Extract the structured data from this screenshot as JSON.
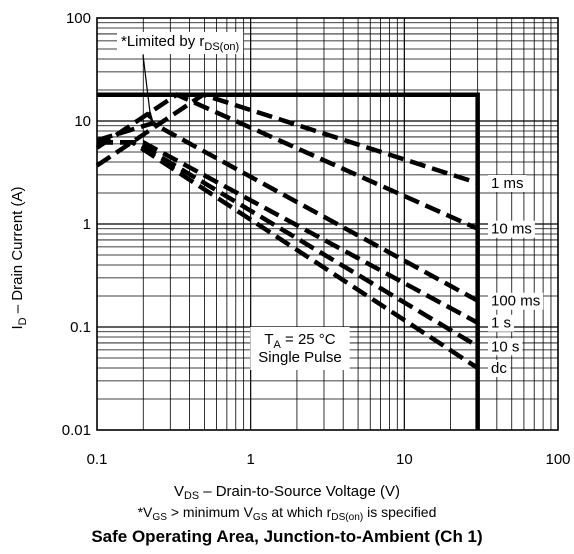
{
  "chart_data": {
    "type": "line",
    "title": "Safe Operating Area, Junction-to-Ambient (Ch 1)",
    "x_scale": "log",
    "y_scale": "log",
    "xlim": [
      0.1,
      100
    ],
    "ylim": [
      0.01,
      100
    ],
    "x_ticks": [
      "0.1",
      "1",
      "10",
      "100"
    ],
    "y_ticks": [
      "0.01",
      "0.1",
      "1",
      "10",
      "100"
    ],
    "xlabel": {
      "pre": "V",
      "sub": "DS",
      "post": " – Drain-to-Source Voltage (V)"
    },
    "ylabel": {
      "pre": "I",
      "sub": "D",
      "post": " – Drain Current (A)"
    },
    "footnote": {
      "p1": "*V",
      "s1": "GS",
      "p2": " > minimum V",
      "s2": "GS",
      "p3": " at which r",
      "s3": "DS(on)",
      "p4": " is specified"
    },
    "callout": {
      "pre": "*Limited by r",
      "sub": "DS(on)"
    },
    "annotation": {
      "line1_pre": "T",
      "line1_sub": "A",
      "line1_post": " = 25 °C",
      "line2": "Single Pulse"
    },
    "grid": true,
    "envelope": {
      "max_current": 18,
      "max_voltage": 30,
      "x": [
        0.1,
        30,
        30
      ],
      "y": [
        18,
        18,
        0.01
      ]
    },
    "series": [
      {
        "name": "1 ms",
        "x": [
          0.1,
          0.49,
          30
        ],
        "y": [
          3.7,
          18,
          2.5
        ]
      },
      {
        "name": "10 ms",
        "x": [
          0.1,
          0.33,
          30
        ],
        "y": [
          5.5,
          18,
          0.9
        ]
      },
      {
        "name": "100 ms",
        "x": [
          0.1,
          0.23,
          30
        ],
        "y": [
          6.5,
          9.5,
          0.18
        ]
      },
      {
        "name": "1 s",
        "x": [
          0.1,
          0.2,
          30
        ],
        "y": [
          6.2,
          6.2,
          0.11
        ]
      },
      {
        "name": "10 s",
        "x": [
          0.1,
          0.18,
          30
        ],
        "y": [
          6.2,
          6.2,
          0.065
        ]
      },
      {
        "name": "dc",
        "x": [
          0.1,
          0.17,
          30
        ],
        "y": [
          6.2,
          6.2,
          0.04
        ]
      }
    ]
  }
}
